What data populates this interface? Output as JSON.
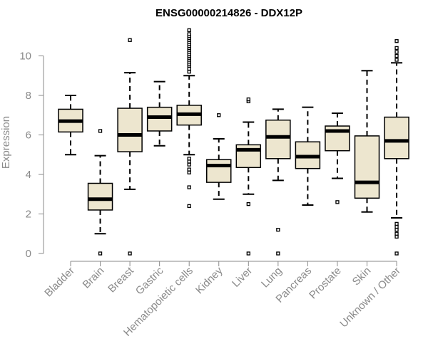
{
  "chart_data": {
    "type": "boxplot",
    "title": "ENSG00000214826 - DDX12P",
    "xlabel": "",
    "ylabel": "Expression",
    "ylim": [
      0,
      11.3
    ],
    "yticks": [
      0,
      2,
      4,
      6,
      8,
      10
    ],
    "box_fill": "#ede6cf",
    "box_stroke": "#000000",
    "axis_color": "#8a8a8a",
    "categories": [
      {
        "name": "Bladder",
        "whisker_low": 5.0,
        "q1": 6.15,
        "median": 6.7,
        "q3": 7.3,
        "whisker_high": 8.0,
        "outliers": []
      },
      {
        "name": "Brain",
        "whisker_low": 1.0,
        "q1": 2.2,
        "median": 2.75,
        "q3": 3.55,
        "whisker_high": 4.95,
        "outliers": [
          0,
          6.2
        ]
      },
      {
        "name": "Breast",
        "whisker_low": 3.25,
        "q1": 5.15,
        "median": 6.0,
        "q3": 7.35,
        "whisker_high": 9.15,
        "outliers": [
          0,
          10.8
        ]
      },
      {
        "name": "Gastric",
        "whisker_low": 5.45,
        "q1": 6.2,
        "median": 6.9,
        "q3": 7.4,
        "whisker_high": 8.7,
        "outliers": []
      },
      {
        "name": "Hematopoietic cells",
        "whisker_low": 5.0,
        "q1": 6.5,
        "median": 7.05,
        "q3": 7.5,
        "whisker_high": 9.0,
        "outliers": [
          2.4,
          3.35,
          4.1,
          4.25,
          4.5,
          4.65,
          4.8,
          9.2,
          9.35,
          9.5,
          9.6,
          9.7,
          9.8,
          9.9,
          10.0,
          10.1,
          10.2,
          10.3,
          10.4,
          10.5,
          10.6,
          10.7,
          10.8,
          10.9,
          11.0,
          11.1,
          11.3
        ]
      },
      {
        "name": "Kidney",
        "whisker_low": 2.75,
        "q1": 3.6,
        "median": 4.45,
        "q3": 4.75,
        "whisker_high": 5.8,
        "outliers": [
          7.0
        ]
      },
      {
        "name": "Liver",
        "whisker_low": 3.0,
        "q1": 4.35,
        "median": 5.25,
        "q3": 5.5,
        "whisker_high": 6.65,
        "outliers": [
          0,
          2.5,
          7.7,
          7.8
        ]
      },
      {
        "name": "Lung",
        "whisker_low": 3.7,
        "q1": 4.8,
        "median": 5.9,
        "q3": 6.75,
        "whisker_high": 7.3,
        "outliers": [
          0,
          1.2
        ]
      },
      {
        "name": "Pancreas",
        "whisker_low": 2.45,
        "q1": 4.3,
        "median": 4.9,
        "q3": 5.65,
        "whisker_high": 7.4,
        "outliers": []
      },
      {
        "name": "Prostate",
        "whisker_low": 3.8,
        "q1": 5.2,
        "median": 6.2,
        "q3": 6.45,
        "whisker_high": 7.1,
        "outliers": [
          2.6
        ]
      },
      {
        "name": "Skin",
        "whisker_low": 2.1,
        "q1": 2.8,
        "median": 3.6,
        "q3": 5.95,
        "whisker_high": 9.25,
        "outliers": []
      },
      {
        "name": "Unknown / Other",
        "whisker_low": 1.8,
        "q1": 4.8,
        "median": 5.7,
        "q3": 6.9,
        "whisker_high": 9.65,
        "outliers": [
          0,
          0.85,
          1.0,
          1.2,
          1.35,
          1.5,
          9.8,
          10.0,
          10.2,
          10.4,
          10.75
        ]
      }
    ]
  }
}
